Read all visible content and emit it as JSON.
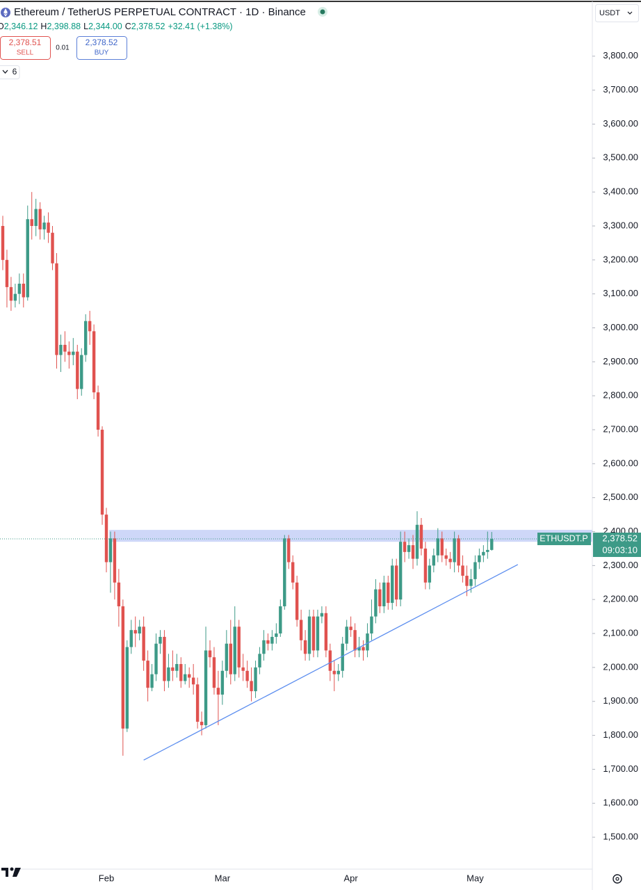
{
  "header": {
    "title": "Ethereum / TetherUS PERPETUAL CONTRACT · 1D · Binance",
    "ohlc": [
      "O",
      "2,346.12",
      "H",
      "2,398.88",
      "L",
      "2,344.00",
      "C",
      "2,378.52",
      "+32.41 (+1.38%)"
    ],
    "sell_price": "2,378.51",
    "sell": "SELL",
    "spread": "0.01",
    "buy_price": "2,378.52",
    "buy": "BUY",
    "indicators": "6",
    "currency": "USDT"
  },
  "price_label": {
    "symbol": "ETHUSDT.P",
    "price": "2,378.52",
    "countdown": "09:03:10"
  },
  "chart_data": {
    "type": "candlestick",
    "up_color": "#3d9a87",
    "down_color": "#e0524f",
    "categories": [
      null,
      null,
      null,
      null,
      null,
      null,
      null,
      null,
      null,
      null,
      null,
      null,
      null,
      null,
      null,
      null,
      null,
      null,
      null,
      null,
      null,
      null,
      null,
      null,
      null,
      "Feb",
      null,
      null,
      null,
      null,
      null,
      null,
      null,
      null,
      null,
      null,
      null,
      null,
      null,
      null,
      null,
      null,
      null,
      null,
      null,
      null,
      null,
      null,
      null,
      null,
      null,
      null,
      null,
      "Mar",
      null,
      null,
      null,
      null,
      null,
      null,
      null,
      null,
      null,
      null,
      null,
      null,
      null,
      null,
      null,
      null,
      null,
      null,
      null,
      null,
      null,
      null,
      null,
      null,
      null,
      null,
      null,
      null,
      null,
      null,
      "Apr",
      null,
      null,
      null,
      null,
      null,
      null,
      null,
      null,
      null,
      null,
      null,
      null,
      null,
      null,
      null,
      null,
      null,
      null,
      null,
      null,
      null,
      null,
      null,
      null,
      null,
      null,
      null,
      null,
      null,
      "May",
      null,
      null,
      null,
      null
    ],
    "open": [
      3300,
      3200,
      3120,
      3080,
      3100,
      3130,
      3090,
      3320,
      3300,
      3350,
      3290,
      3310,
      3280,
      3190,
      2920,
      2950,
      2930,
      2920,
      2930,
      2820,
      2920,
      3020,
      2990,
      2810,
      2700,
      2450,
      2310,
      2380,
      2250,
      2180,
      1820,
      2060,
      2110,
      2100,
      2120,
      2020,
      1940,
      1980,
      2070,
      2090,
      1960,
      2000,
      1990,
      2010,
      1960,
      1980,
      1970,
      1950,
      1840,
      1830,
      2050,
      2030,
      1940,
      1920,
      1990,
      2070,
      1980,
      2120,
      2000,
      1990,
      1960,
      1930,
      2000,
      2040,
      2080,
      2070,
      2090,
      2100,
      2180,
      2380,
      2310,
      2250,
      2140,
      2080,
      2040,
      2150,
      2050,
      2150,
      2160,
      2050,
      1990,
      1980,
      1990,
      2070,
      2120,
      2110,
      2050,
      2060,
      2050,
      2100,
      2150,
      2230,
      2180,
      2250,
      2190,
      2300,
      2200,
      2370,
      2340,
      2360,
      2320,
      2420,
      2350,
      2250,
      2300,
      2330,
      2380,
      2330,
      2320,
      2310,
      2380,
      2300,
      2270,
      2240,
      2260,
      2310,
      2330,
      2340,
      2346.12
    ],
    "high": [
      3330,
      3230,
      3150,
      3130,
      3160,
      3160,
      3360,
      3400,
      3380,
      3370,
      3330,
      3340,
      3300,
      3220,
      2980,
      2990,
      2960,
      2970,
      2950,
      2940,
      3040,
      3050,
      3010,
      2830,
      2710,
      2470,
      2400,
      2400,
      2290,
      2200,
      2080,
      2140,
      2150,
      2140,
      2150,
      2050,
      2010,
      2100,
      2110,
      2110,
      2040,
      2050,
      2040,
      2030,
      2010,
      2000,
      2010,
      1970,
      1870,
      2120,
      2080,
      2060,
      1990,
      2020,
      2110,
      2140,
      2180,
      2140,
      2040,
      2020,
      2000,
      2020,
      2060,
      2110,
      2100,
      2110,
      2130,
      2200,
      2390,
      2390,
      2330,
      2270,
      2170,
      2110,
      2170,
      2170,
      2170,
      2180,
      2180,
      2070,
      2020,
      2010,
      2090,
      2140,
      2150,
      2130,
      2090,
      2080,
      2130,
      2200,
      2260,
      2250,
      2270,
      2270,
      2320,
      2320,
      2400,
      2400,
      2380,
      2390,
      2460,
      2440,
      2370,
      2320,
      2350,
      2410,
      2400,
      2350,
      2340,
      2400,
      2390,
      2330,
      2300,
      2290,
      2330,
      2350,
      2360,
      2400,
      2398.88
    ],
    "low": [
      3170,
      3060,
      3050,
      3060,
      3070,
      3060,
      3080,
      3260,
      3270,
      3260,
      3260,
      3250,
      3170,
      2880,
      2870,
      2900,
      2880,
      2890,
      2790,
      2800,
      2900,
      2950,
      2790,
      2680,
      2420,
      2280,
      2220,
      2200,
      2120,
      1740,
      1810,
      2040,
      2060,
      2080,
      1990,
      1900,
      1930,
      1960,
      2040,
      1930,
      1940,
      1960,
      1970,
      1940,
      1950,
      1940,
      1920,
      1820,
      1800,
      1820,
      2000,
      1920,
      1830,
      1890,
      1970,
      1950,
      1960,
      1970,
      1960,
      1940,
      1900,
      1910,
      1980,
      2020,
      2050,
      2050,
      2070,
      2090,
      2170,
      2290,
      2230,
      2120,
      2050,
      2020,
      2020,
      2030,
      2030,
      2130,
      2030,
      1960,
      1930,
      1960,
      1970,
      2050,
      2090,
      2030,
      2030,
      2020,
      2030,
      2080,
      2130,
      2160,
      2160,
      2170,
      2170,
      2180,
      2180,
      2310,
      2320,
      2290,
      2300,
      2330,
      2230,
      2230,
      2280,
      2310,
      2310,
      2300,
      2290,
      2280,
      2280,
      2250,
      2210,
      2220,
      2240,
      2290,
      2310,
      2320,
      2344
    ],
    "close": [
      3200,
      3120,
      3080,
      3100,
      3130,
      3090,
      3320,
      3300,
      3350,
      3290,
      3310,
      3280,
      3190,
      2920,
      2950,
      2930,
      2920,
      2930,
      2820,
      2920,
      3020,
      2990,
      2810,
      2700,
      2450,
      2310,
      2380,
      2250,
      2180,
      1820,
      2060,
      2110,
      2100,
      2120,
      2020,
      1940,
      1980,
      2070,
      2090,
      1960,
      2000,
      1990,
      2010,
      1960,
      1980,
      1970,
      1950,
      1840,
      1830,
      2050,
      2030,
      1940,
      1920,
      1990,
      2070,
      1980,
      2120,
      2000,
      1990,
      1960,
      1930,
      2000,
      2040,
      2080,
      2070,
      2090,
      2100,
      2180,
      2380,
      2310,
      2250,
      2140,
      2080,
      2040,
      2150,
      2050,
      2150,
      2160,
      2050,
      1990,
      1980,
      1990,
      2070,
      2120,
      2110,
      2050,
      2060,
      2050,
      2100,
      2150,
      2230,
      2180,
      2250,
      2190,
      2300,
      2200,
      2370,
      2340,
      2360,
      2320,
      2420,
      2350,
      2250,
      2300,
      2330,
      2380,
      2330,
      2320,
      2310,
      2380,
      2300,
      2270,
      2240,
      2260,
      2310,
      2330,
      2340,
      2346,
      2378.52
    ],
    "ylim": [
      1406,
      3904
    ],
    "yticks": [
      {
        "value": 1500,
        "label": "1,500.00"
      },
      {
        "value": 1600,
        "label": "1,600.00"
      },
      {
        "value": 1700,
        "label": "1,700.00"
      },
      {
        "value": 1800,
        "label": "1,800.00"
      },
      {
        "value": 1900,
        "label": "1,900.00"
      },
      {
        "value": 2000,
        "label": "2,000.00"
      },
      {
        "value": 2100,
        "label": "2,100.00"
      },
      {
        "value": 2200,
        "label": "2,200.00"
      },
      {
        "value": 2300,
        "label": "2,300.00"
      },
      {
        "value": 2400,
        "label": "2,400.00"
      },
      {
        "value": 2500,
        "label": "2,500.00"
      },
      {
        "value": 2600,
        "label": "2,600.00"
      },
      {
        "value": 2700,
        "label": "2,700.00"
      },
      {
        "value": 2800,
        "label": "2,800.00"
      },
      {
        "value": 2900,
        "label": "2,900.00"
      },
      {
        "value": 3000,
        "label": "3,000.00"
      },
      {
        "value": 3100,
        "label": "3,100.00"
      },
      {
        "value": 3200,
        "label": "3,200.00"
      },
      {
        "value": 3300,
        "label": "3,300.00"
      },
      {
        "value": 3400,
        "label": "3,400.00"
      },
      {
        "value": 3500,
        "label": "3,500.00"
      },
      {
        "value": 3600,
        "label": "3,600.00"
      },
      {
        "value": 3700,
        "label": "3,700.00"
      },
      {
        "value": 3800,
        "label": "3,800.00"
      }
    ],
    "zone": [
      2370,
      2405
    ],
    "trendline": {
      "from": [
        34,
        1727
      ],
      "to": [
        124.3,
        2303
      ],
      "color": "#5b8def"
    }
  }
}
